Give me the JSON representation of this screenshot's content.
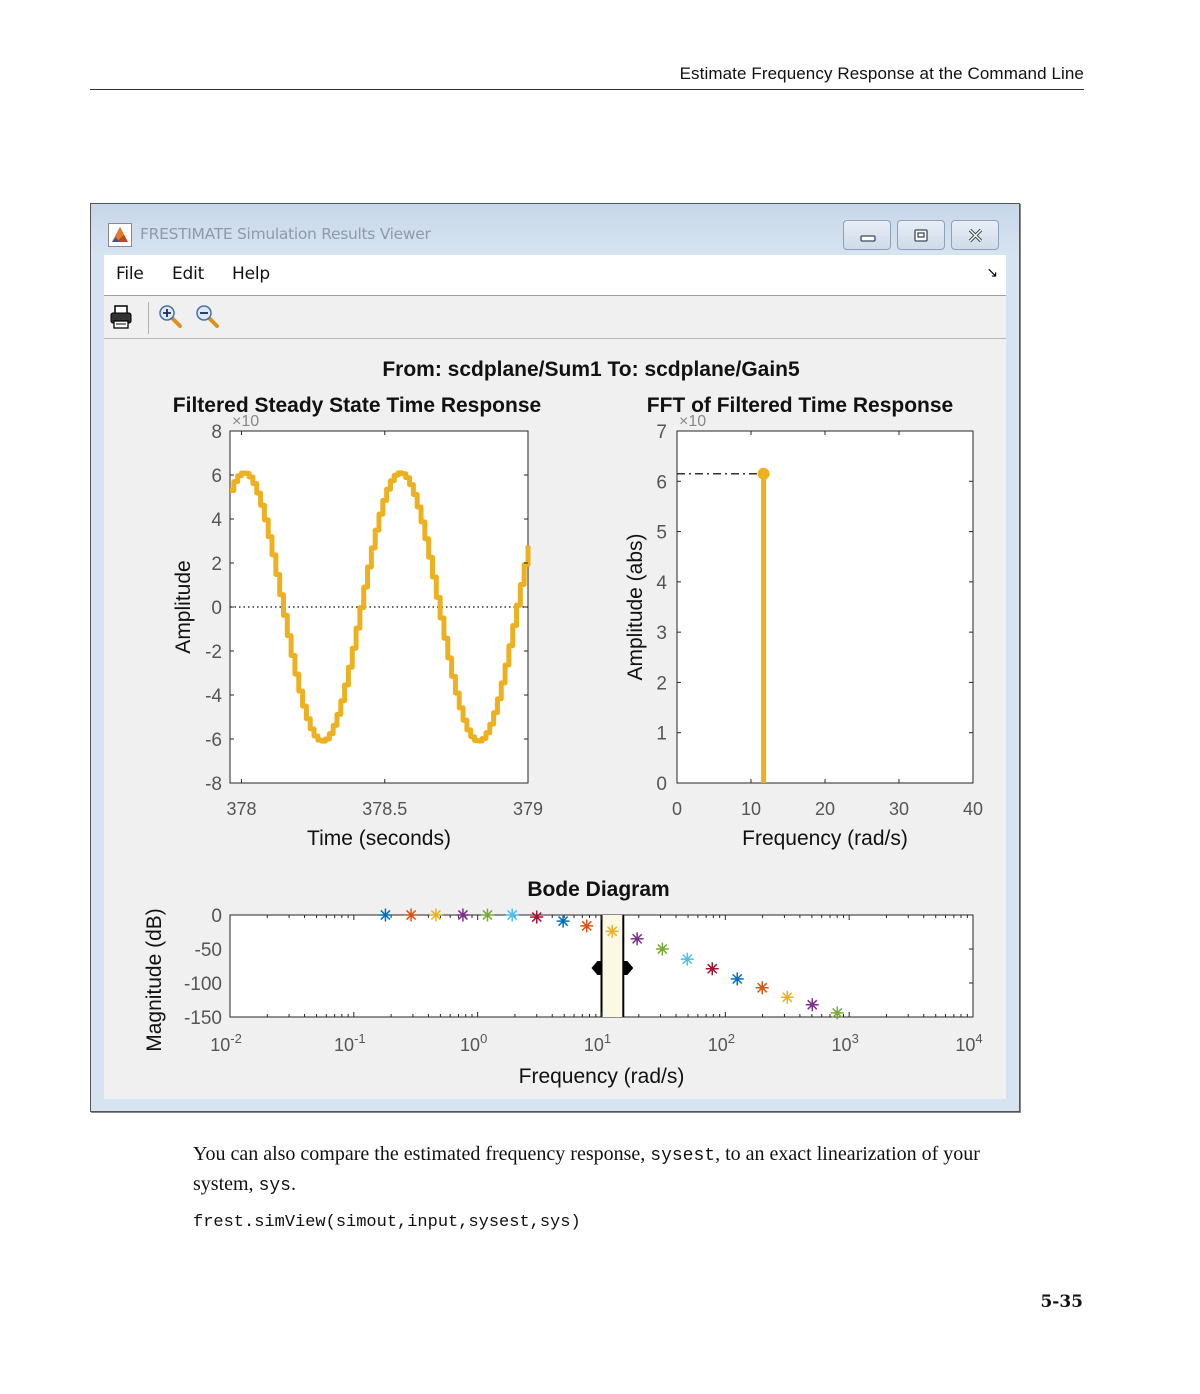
{
  "page": {
    "running_head": "Estimate Frequency Response at the Command Line",
    "body_text_parts": [
      "You can also compare the estimated frequency response, ",
      "sysest",
      ", to an exact linearization of your system, ",
      "sys",
      "."
    ],
    "code_line": "frest.simView(simout,input,sysest,sys)",
    "page_number": "5-35"
  },
  "window": {
    "title": "FRESTIMATE Simulation Results Viewer",
    "controls": [
      "minimize",
      "restore",
      "close"
    ],
    "menu": [
      {
        "label": "File"
      },
      {
        "label": "Edit"
      },
      {
        "label": "Help"
      }
    ],
    "dock_glyph": "↘",
    "toolbar": [
      {
        "name": "print-button",
        "icon": "printer-icon"
      },
      {
        "name": "zoom-in-button",
        "icon": "zoom-in-icon"
      },
      {
        "name": "zoom-out-button",
        "icon": "zoom-out-icon"
      }
    ]
  },
  "figure": {
    "suptitle": "From: scdplane/Sum1  To: scdplane/Gain5",
    "accent_color": "#EDB120"
  },
  "chart_data": [
    {
      "type": "line",
      "title": "Filtered Steady State Time Response",
      "xlabel": "Time (seconds)",
      "ylabel": "Amplitude",
      "y_exponent_label": "×10",
      "xlim": [
        377.96,
        379.0
      ],
      "ylim": [
        -8,
        8
      ],
      "xticks": [
        "378",
        "378.5",
        "379"
      ],
      "yticks": [
        "8",
        "6",
        "4",
        "2",
        "0",
        "-2",
        "-4",
        "-6",
        "-8"
      ],
      "grid": false,
      "zero_line": "dotted",
      "color": "#EDB120",
      "description": "Staircase sinusoid, amplitude ~6.1, period ~0.545 s",
      "series": [
        {
          "name": "filtered response",
          "x": [
            377.96,
            377.99,
            378.05,
            378.11,
            378.17,
            378.23,
            378.29,
            378.35,
            378.41,
            378.47,
            378.52,
            378.58,
            378.64,
            378.7,
            378.76,
            378.81,
            378.87,
            378.93,
            379.0
          ],
          "y": [
            5.7,
            6.1,
            5.3,
            2.8,
            -0.9,
            -4.3,
            -6.1,
            -4.9,
            -1.6,
            2.6,
            6.1,
            5.0,
            1.9,
            -2.1,
            -5.4,
            -6.1,
            -3.6,
            0.2,
            5.2
          ]
        }
      ]
    },
    {
      "type": "stem",
      "title": "FFT of Filtered Time Response",
      "xlabel": "Frequency (rad/s)",
      "ylabel": "Amplitude (abs)",
      "y_exponent_label": "×10",
      "xlim": [
        0,
        40
      ],
      "ylim": [
        0,
        7
      ],
      "xticks": [
        "0",
        "10",
        "20",
        "30",
        "40"
      ],
      "yticks": [
        "7",
        "6",
        "5",
        "4",
        "3",
        "2",
        "1",
        "0"
      ],
      "grid": false,
      "color": "#EDB120",
      "series": [
        {
          "name": "FFT peak",
          "x": [
            11.7
          ],
          "y": [
            6.15
          ]
        }
      ],
      "reference_line": {
        "style": "dash-dot",
        "y": 6.15,
        "from_x": 0,
        "to_x": 11.7
      }
    },
    {
      "type": "scatter",
      "title": "Bode Diagram",
      "xlabel": "Frequency  (rad/s)",
      "ylabel": "Magnitude (dB)",
      "xscale": "log",
      "xlim": [
        0.01,
        10000
      ],
      "ylim": [
        -150,
        0
      ],
      "xticks": [
        "10^-2",
        "10^-1",
        "10^0",
        "10^1",
        "10^2",
        "10^3",
        "10^4"
      ],
      "yticks": [
        "0",
        "-50",
        "-100",
        "-150"
      ],
      "marker": "*",
      "highlight_band": {
        "from": 10,
        "to": 15,
        "color": "#FBF9E3"
      },
      "series": [
        {
          "name": "estimated points",
          "x": [
            0.18,
            0.29,
            0.46,
            0.76,
            1.2,
            1.9,
            3.0,
            4.9,
            7.6,
            12.2,
            19.4,
            31.0,
            49.3,
            78.4,
            124.8,
            198.6,
            316.3,
            503.4,
            801.2
          ],
          "y": [
            0,
            0,
            0,
            0,
            0,
            0,
            -3,
            -9,
            -16,
            -24,
            -35,
            -50,
            -65,
            -79,
            -94,
            -107,
            -121,
            -132,
            -144
          ],
          "colors": [
            "#0072BD",
            "#D95319",
            "#EDB120",
            "#7E2F8E",
            "#77AC30",
            "#4DBEEE",
            "#A2142F",
            "#0072BD",
            "#D95319",
            "#EDB120",
            "#7E2F8E",
            "#77AC30",
            "#4DBEEE",
            "#A2142F",
            "#0072BD",
            "#D95319",
            "#EDB120",
            "#7E2F8E",
            "#77AC30"
          ]
        }
      ]
    }
  ]
}
